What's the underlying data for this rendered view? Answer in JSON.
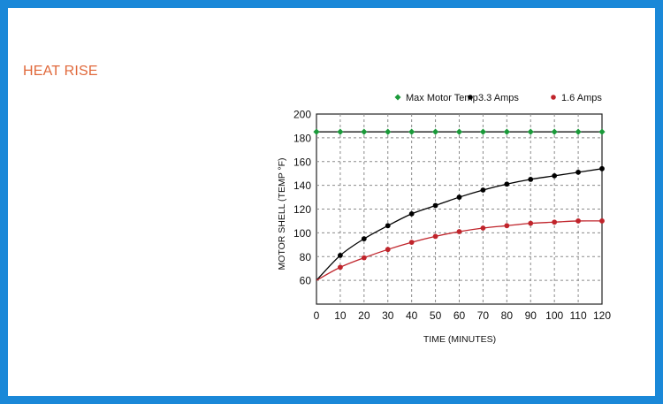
{
  "page": {
    "title": "HEAT RISE",
    "colors": {
      "frame": "#1a88d8",
      "title": "#e0683a",
      "max": "#1b9a3a",
      "amps33": "#000000",
      "amps16": "#c0242b"
    }
  },
  "chart_data": {
    "type": "line",
    "xlabel": "TIME (MINUTES)",
    "ylabel": "MOTOR SHELL (TEMP °F)",
    "xlim": [
      0,
      120
    ],
    "ylim": [
      40,
      200
    ],
    "x_ticks": [
      "0",
      "10",
      "20",
      "30",
      "40",
      "50",
      "60",
      "70",
      "80",
      "90",
      "100",
      "110",
      "120"
    ],
    "y_ticks": [
      "60",
      "80",
      "100",
      "120",
      "140",
      "160",
      "180",
      "200"
    ],
    "grid": true,
    "legend_position": "top",
    "series": [
      {
        "name": "Max Motor Temp",
        "color": "#1b9a3a",
        "marker": "diamond",
        "x": [
          0,
          10,
          20,
          30,
          40,
          50,
          60,
          70,
          80,
          90,
          100,
          110,
          120
        ],
        "y": [
          185,
          185,
          185,
          185,
          185,
          185,
          185,
          185,
          185,
          185,
          185,
          185,
          185
        ]
      },
      {
        "name": "3.3 Amps",
        "color": "#000000",
        "marker": "circle",
        "x": [
          0,
          10,
          20,
          30,
          40,
          50,
          60,
          70,
          80,
          90,
          100,
          110,
          120
        ],
        "y": [
          60,
          81,
          95,
          106,
          116,
          123,
          130,
          136,
          141,
          145,
          148,
          151,
          154
        ]
      },
      {
        "name": "1.6 Amps",
        "color": "#c0242b",
        "marker": "circle",
        "x": [
          0,
          10,
          20,
          30,
          40,
          50,
          60,
          70,
          80,
          90,
          100,
          110,
          120
        ],
        "y": [
          60,
          71,
          79,
          86,
          92,
          97,
          101,
          104,
          106,
          108,
          109,
          110,
          110
        ]
      }
    ]
  }
}
